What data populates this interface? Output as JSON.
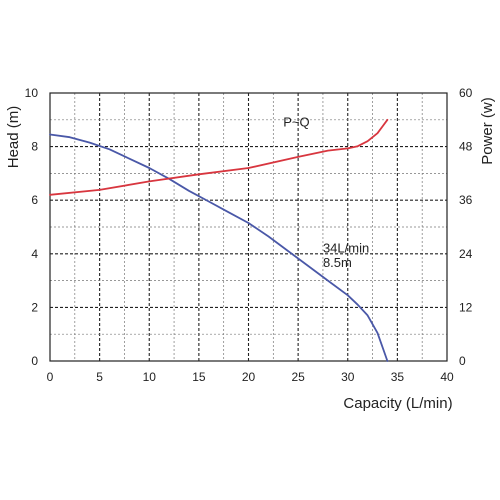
{
  "chart_data": {
    "type": "line",
    "xlabel": "Capacity (L/min)",
    "ylabel_left": "Head (m)",
    "ylabel_right": "Power (w)",
    "xlim": [
      0,
      40
    ],
    "ylim_left": [
      0,
      10
    ],
    "ylim_right": [
      0,
      60
    ],
    "x_ticks": [
      "0",
      "5",
      "10",
      "15",
      "20",
      "25",
      "30",
      "35",
      "40"
    ],
    "y_ticks_left": [
      "0",
      "2",
      "4",
      "6",
      "8",
      "10"
    ],
    "y_ticks_right": [
      "0",
      "12",
      "24",
      "36",
      "48",
      "60"
    ],
    "grid": true,
    "series": [
      {
        "name": "",
        "axis": "left",
        "color": "#4a58a8",
        "x": [
          0,
          2,
          4,
          6,
          8,
          10,
          12,
          14,
          16,
          18,
          20,
          22,
          24,
          26,
          28,
          30,
          31,
          32,
          33,
          34
        ],
        "y": [
          8.45,
          8.35,
          8.15,
          7.9,
          7.55,
          7.2,
          6.8,
          6.35,
          5.95,
          5.55,
          5.15,
          4.65,
          4.1,
          3.55,
          3.0,
          2.45,
          2.1,
          1.7,
          1.05,
          0.0
        ]
      },
      {
        "name": "P~Q",
        "axis": "right",
        "color": "#d8363f",
        "x": [
          0,
          5,
          10,
          15,
          20,
          25,
          28,
          30,
          31,
          32,
          33,
          34
        ],
        "y": [
          37.2,
          38.3,
          40.2,
          41.8,
          43.2,
          45.7,
          47.1,
          47.6,
          48.1,
          49.2,
          51.0,
          54.0
        ]
      }
    ],
    "annotations": [
      {
        "text": "P~Q",
        "x": 23.5,
        "y": 8.75
      },
      {
        "text": "34L/min",
        "x": 27.5,
        "y": 4.05
      },
      {
        "text": "8.5m",
        "x": 27.5,
        "y": 3.5
      }
    ]
  }
}
